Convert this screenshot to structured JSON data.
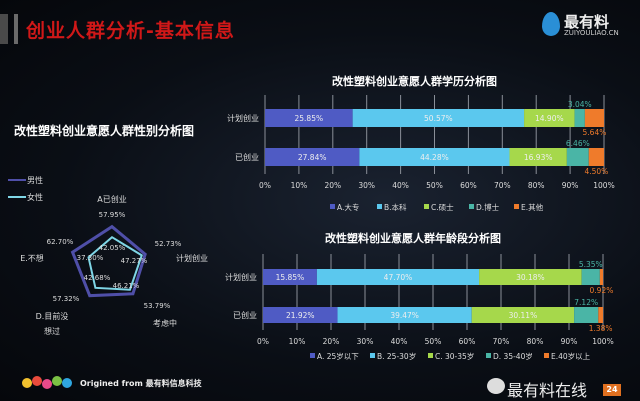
{
  "header": {
    "title": "创业人群分析-基本信息",
    "logo_name": "最有料",
    "logo_url": "ZUIYOULIAO.CN"
  },
  "footer": {
    "origin": "Origined from 最有料信息科技",
    "wechat": "最有料在线",
    "page": "24"
  },
  "colors": {
    "A": "#4f5bc4",
    "B": "#5bc8ee",
    "C": "#a6d84b",
    "D": "#4ab5a6",
    "E": "#ef7b2b",
    "male": "#4f4fa8",
    "female": "#7fd6e6"
  },
  "chart_data": [
    {
      "type": "radar",
      "title": "改性塑料创业意愿人群性别分析图",
      "axes": [
        "A已创业",
        "计划创业",
        "考虑中",
        "D.目前没想过",
        "E.不想"
      ],
      "series": [
        {
          "name": "男性",
          "values": [
            57.95,
            52.73,
            53.79,
            57.32,
            62.7
          ]
        },
        {
          "name": "女性",
          "values": [
            42.05,
            47.27,
            46.21,
            42.68,
            37.3
          ]
        }
      ],
      "legend": "top-left"
    },
    {
      "type": "stacked-bar-horizontal",
      "title": "改性塑料创业意愿人群学历分析图",
      "categories": [
        "计划创业",
        "已创业"
      ],
      "series": [
        {
          "name": "A.大专",
          "values": [
            25.85,
            27.84
          ]
        },
        {
          "name": "B.本科",
          "values": [
            50.57,
            44.28
          ]
        },
        {
          "name": "C.硕士",
          "values": [
            14.9,
            16.93
          ]
        },
        {
          "name": "D.博士",
          "values": [
            3.04,
            6.46
          ]
        },
        {
          "name": "E.其他",
          "values": [
            5.64,
            4.5
          ]
        }
      ],
      "xticks": [
        "0%",
        "10%",
        "20%",
        "30%",
        "40%",
        "50%",
        "60%",
        "70%",
        "80%",
        "90%",
        "100%"
      ],
      "xlim": [
        0,
        100
      ],
      "legend": "bottom"
    },
    {
      "type": "stacked-bar-horizontal",
      "title": "改性塑料创业意愿人群年龄段分析图",
      "categories": [
        "计划创业",
        "已创业"
      ],
      "series": [
        {
          "name": "A. 25岁以下",
          "values": [
            15.85,
            21.92
          ]
        },
        {
          "name": "B. 25-30岁",
          "values": [
            47.7,
            39.47
          ]
        },
        {
          "name": "C. 30-35岁",
          "values": [
            30.18,
            30.11
          ]
        },
        {
          "name": "D. 35-40岁",
          "values": [
            5.35,
            7.12
          ]
        },
        {
          "name": "E.40岁以上",
          "values": [
            0.92,
            1.38
          ]
        }
      ],
      "xticks": [
        "0%",
        "10%",
        "20%",
        "30%",
        "40%",
        "50%",
        "60%",
        "70%",
        "80%",
        "90%",
        "100%"
      ],
      "xlim": [
        0,
        100
      ],
      "legend": "bottom"
    }
  ]
}
